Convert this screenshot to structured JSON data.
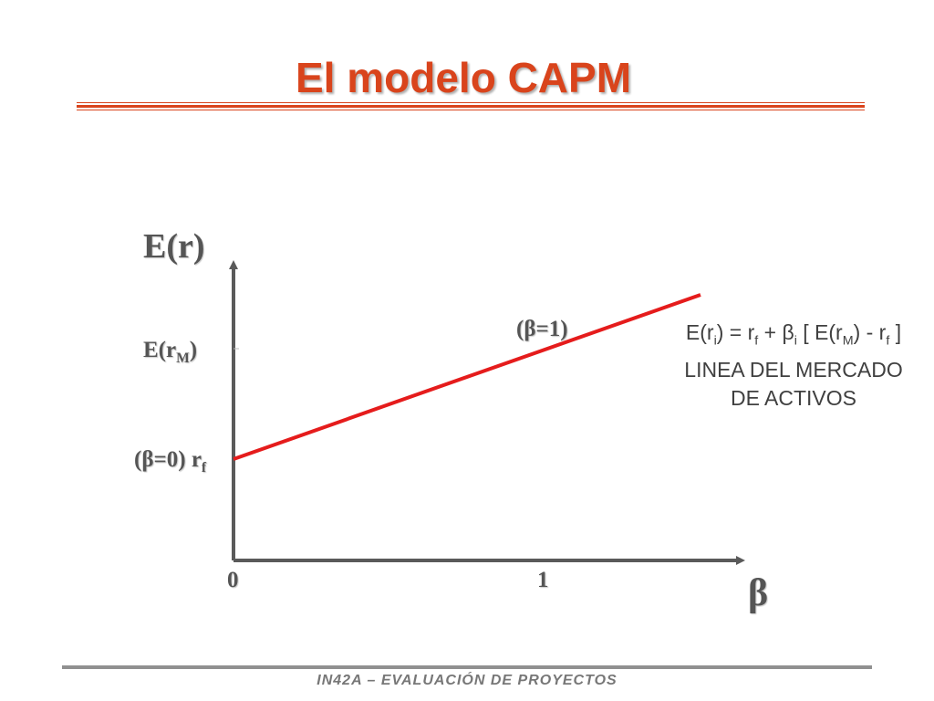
{
  "slide": {
    "title": "El modelo CAPM",
    "footer": "IN42A – EVALUACIÓN DE PROYECTOS"
  },
  "diagram": {
    "y_axis_label": "E(r)",
    "x_axis_label": "β",
    "erm_label": {
      "main": "E(r",
      "sub": "M",
      "close": ")"
    },
    "rf_label": {
      "main": "(β=0) r",
      "sub": "f"
    },
    "beta_one_label": "(β=1)",
    "x_ticks": [
      "0",
      "1"
    ],
    "line_color": "#e51c1c",
    "axis_color": "#5a5a5a",
    "equation": {
      "parts": [
        "E(r",
        "i",
        ") = r",
        "f",
        " + β",
        "i",
        " [ E(r",
        "M",
        ") - r",
        "f",
        " ]"
      ],
      "line2": "LINEA DEL MERCADO",
      "line3": "DE ACTIVOS"
    }
  }
}
